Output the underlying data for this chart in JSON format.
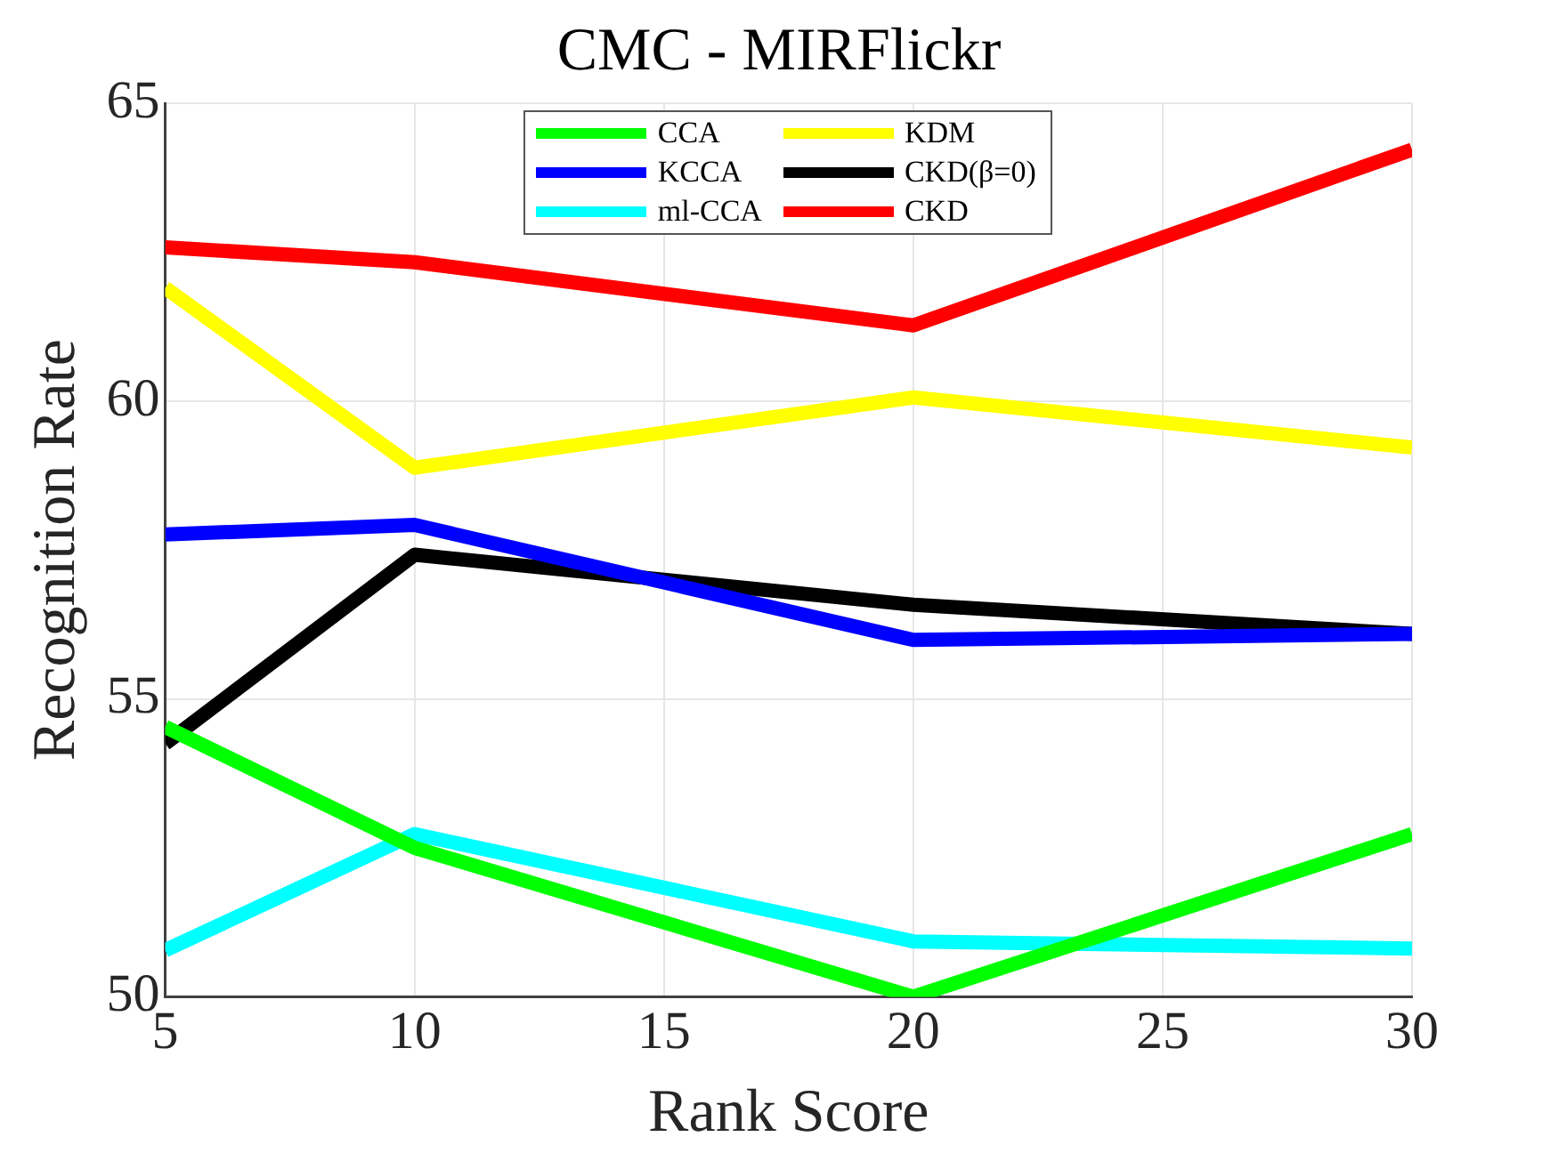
{
  "chart_data": {
    "type": "line",
    "title": "CMC - MIRFlickr",
    "xlabel": "Rank Score",
    "ylabel": "Recognition Rate",
    "x": [
      5,
      10,
      20,
      30
    ],
    "xlim": [
      5,
      30
    ],
    "xticks": [
      5,
      10,
      15,
      20,
      25,
      30
    ],
    "ylim": [
      50,
      65
    ],
    "yticks": [
      50,
      55,
      60,
      65
    ],
    "grid": true,
    "legend": "top",
    "marker": "none",
    "line_style": "solid",
    "series": [
      {
        "name": "CCA",
        "color": "#00ff00",
        "values": [
          54.53,
          52.5,
          50.0,
          52.73
        ]
      },
      {
        "name": "KCCA",
        "color": "#0000ff",
        "values": [
          57.76,
          57.92,
          55.99,
          56.09
        ]
      },
      {
        "name": "ml-CCA",
        "color": "#00ffff",
        "values": [
          50.78,
          52.73,
          50.93,
          50.81
        ]
      },
      {
        "name": "KDM",
        "color": "#ffff00",
        "values": [
          61.9,
          58.88,
          60.06,
          59.22
        ]
      },
      {
        "name": "CKD(β=0)",
        "color": "#000000",
        "values": [
          54.25,
          57.42,
          56.58,
          56.09
        ]
      },
      {
        "name": "CKD",
        "color": "#ff0000",
        "values": [
          62.58,
          62.33,
          61.27,
          64.22
        ]
      }
    ]
  }
}
